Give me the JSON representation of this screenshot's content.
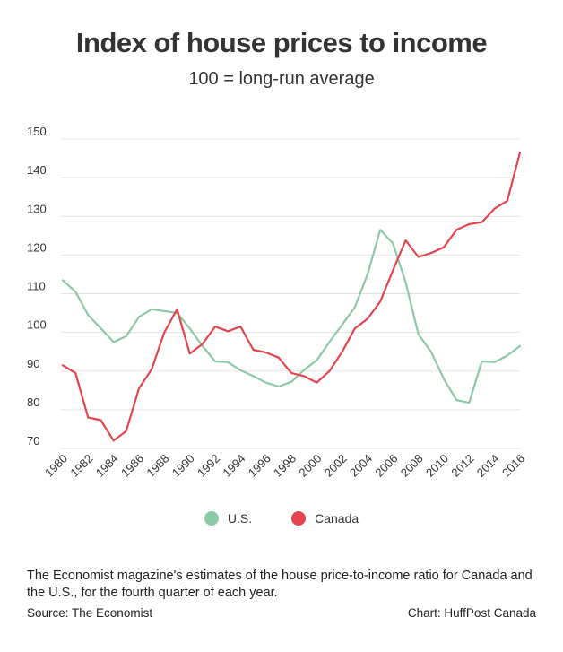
{
  "chart_data": {
    "type": "line",
    "title": "Index of house prices to income",
    "subtitle": "100 = long-run average",
    "xlabel": "",
    "ylabel": "",
    "ylim": [
      70,
      150
    ],
    "yticks": [
      "150",
      "140",
      "130",
      "120",
      "110",
      "100",
      "90",
      "80",
      "70"
    ],
    "xticks": [
      "1980",
      "1982",
      "1984",
      "1986",
      "1988",
      "1990",
      "1992",
      "1994",
      "1996",
      "1998",
      "2000",
      "2002",
      "2004",
      "2006",
      "2008",
      "2010",
      "2012",
      "2014",
      "2016"
    ],
    "x": [
      1980,
      1981,
      1982,
      1983,
      1984,
      1985,
      1986,
      1987,
      1988,
      1989,
      1990,
      1991,
      1992,
      1993,
      1994,
      1995,
      1996,
      1997,
      1998,
      1999,
      2000,
      2001,
      2002,
      2003,
      2004,
      2005,
      2006,
      2007,
      2008,
      2009,
      2010,
      2011,
      2012,
      2013,
      2014,
      2015,
      2016
    ],
    "series": [
      {
        "name": "U.S.",
        "color": "#8cc9a7",
        "values": [
          113.5,
          110.5,
          104.5,
          101,
          97.5,
          99,
          104,
          106,
          105.5,
          105,
          101,
          96.5,
          92.5,
          92.3,
          90.2,
          88.7,
          87,
          86,
          87.2,
          90.3,
          92.8,
          97.5,
          102,
          106.5,
          115,
          126.5,
          123,
          113,
          99.5,
          95,
          88,
          82.5,
          81.8,
          92.5,
          92.3,
          94,
          96.5
        ]
      },
      {
        "name": "Canada",
        "color": "#e5444e",
        "values": [
          91.5,
          89.5,
          78,
          77.3,
          72,
          74.5,
          85.5,
          90.5,
          100,
          106,
          94.5,
          97,
          101.5,
          100.3,
          101.5,
          95.5,
          94.8,
          93.5,
          89.5,
          88.7,
          87,
          90,
          95,
          101,
          103.5,
          108,
          116,
          123.8,
          119.5,
          120.5,
          122,
          126.5,
          128,
          128.5,
          132,
          134,
          146.5
        ]
      }
    ]
  },
  "legend": {
    "us_label": "U.S.",
    "canada_label": "Canada",
    "us_color": "#8cc9a7",
    "canada_color": "#e5444e"
  },
  "footer": {
    "note": "The Economist magazine's estimates of the house price-to-income ratio for Canada and the U.S., for the fourth quarter of each year.",
    "source": "Source: The Economist",
    "credit": "Chart: HuffPost Canada"
  }
}
